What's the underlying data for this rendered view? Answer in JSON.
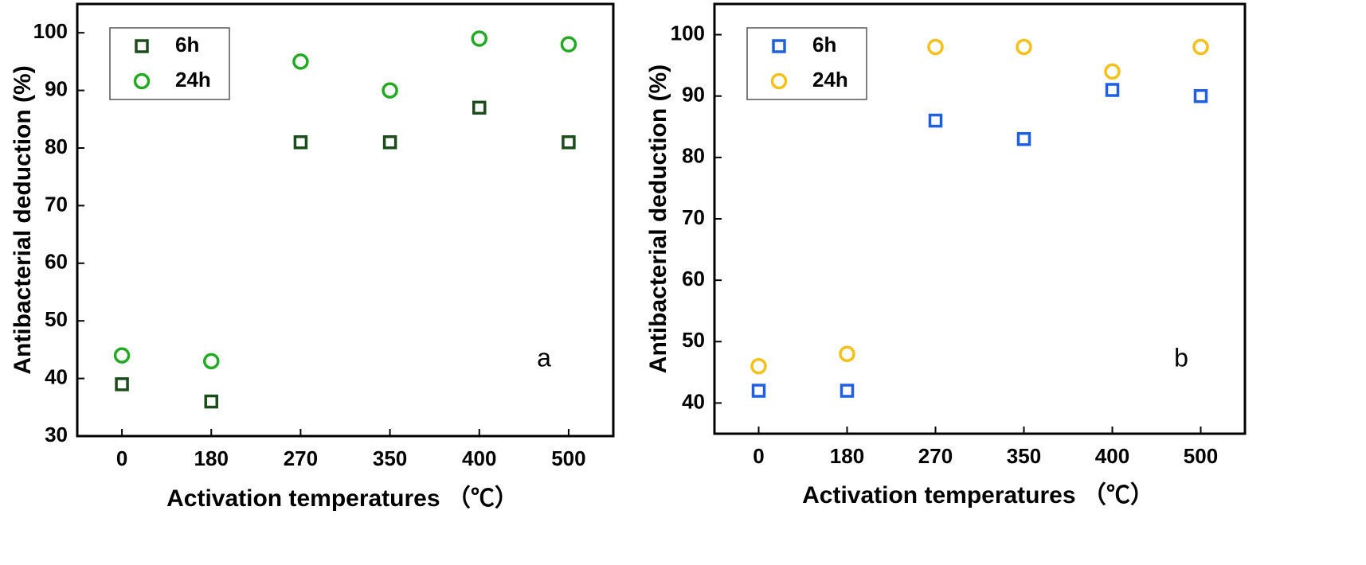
{
  "chart_data": [
    {
      "type": "scatter",
      "x_label": "Activation temperatures （℃）",
      "y_label": "Antibacterial deduction (%)",
      "annotation": "a",
      "categories": [
        "0",
        "180",
        "270",
        "350",
        "400",
        "500"
      ],
      "series": [
        {
          "name": "6h",
          "color": "#1b4d1b",
          "marker": "square",
          "values": [
            39,
            36,
            81,
            81,
            87,
            81
          ]
        },
        {
          "name": "24h",
          "color": "#22aa22",
          "marker": "circle",
          "values": [
            44,
            43,
            95,
            90,
            99,
            98
          ]
        }
      ],
      "ylim": [
        30,
        105
      ],
      "yticks": [
        30,
        40,
        50,
        60,
        70,
        80,
        90,
        100
      ],
      "legend": "upper left"
    },
    {
      "type": "scatter",
      "x_label": "Activation temperatures （℃）",
      "y_label": "Antibacterial deduction (%)",
      "annotation": "b",
      "categories": [
        "0",
        "180",
        "270",
        "350",
        "400",
        "500"
      ],
      "series": [
        {
          "name": "6h",
          "color": "#1f5fe0",
          "marker": "square",
          "values": [
            42,
            42,
            86,
            83,
            91,
            90
          ]
        },
        {
          "name": "24h",
          "color": "#f5c018",
          "marker": "circle",
          "values": [
            46,
            48,
            98,
            98,
            94,
            98
          ]
        }
      ],
      "ylim": [
        35,
        105
      ],
      "yticks": [
        40,
        50,
        60,
        70,
        80,
        90,
        100
      ],
      "legend": "upper left"
    }
  ]
}
